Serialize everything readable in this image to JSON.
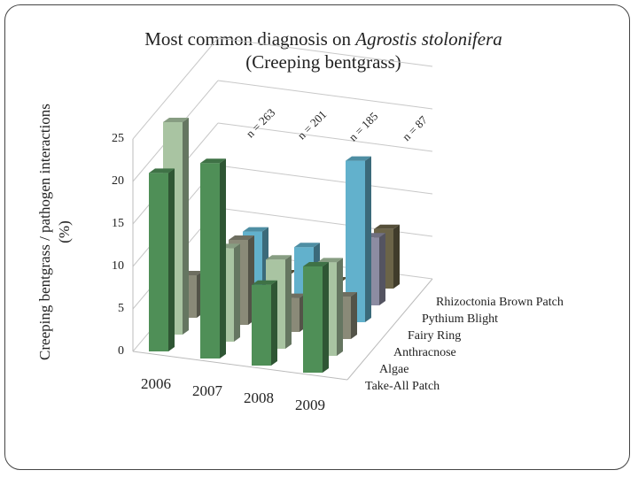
{
  "chart_data": {
    "type": "bar3d",
    "title": "Most common diagnosis on",
    "title_italic": "Agrostis stolonifera",
    "subtitle": "(Creeping bentgrass)",
    "ylabel": [
      "Creeping bentgrass / pathogen interactions",
      "(%)"
    ],
    "categories": [
      "2006",
      "2007",
      "2008",
      "2009"
    ],
    "annotations": [
      "n = 263",
      "n = 201",
      "n = 185",
      "n = 87"
    ],
    "series": [
      {
        "name": "Take-All Patch",
        "color": "#4f8f57",
        "values": [
          21,
          23,
          9.5,
          12.5
        ]
      },
      {
        "name": "Algae",
        "color": "#a9c4a2",
        "values": [
          25,
          11,
          10.5,
          11
        ]
      },
      {
        "name": "Anthracnose",
        "color": "#8a8a78",
        "values": [
          5,
          10,
          4,
          5
        ]
      },
      {
        "name": "Fairy Ring",
        "color": "#62b1cc",
        "values": [
          0,
          9,
          8,
          19
        ]
      },
      {
        "name": "Pythium Blight",
        "color": "#8c8ca2",
        "values": [
          0,
          0,
          0,
          8
        ]
      },
      {
        "name": "Rhizoctonia Brown Patch",
        "color": "#6b6448",
        "values": [
          0,
          0,
          0,
          7
        ]
      }
    ],
    "ylim": [
      0,
      25
    ],
    "yticks": [
      0,
      5,
      10,
      15,
      20,
      25
    ],
    "grid": true
  }
}
